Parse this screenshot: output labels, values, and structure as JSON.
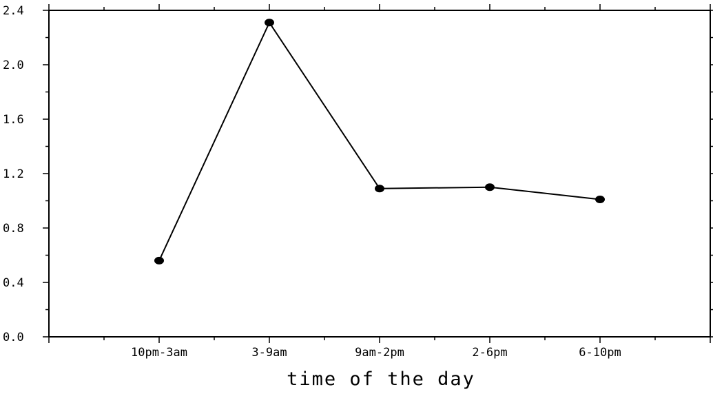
{
  "chart_data": {
    "type": "line",
    "title": "",
    "xlabel": "time of the day",
    "ylabel": "",
    "categories": [
      "10pm-3am",
      "3-9am",
      "9am-2pm",
      "2-6pm",
      "6-10pm"
    ],
    "series": [
      {
        "values": [
          0.56,
          2.31,
          1.09,
          1.1,
          1.01
        ]
      }
    ],
    "ylim": [
      0.0,
      2.4
    ],
    "yticks": [
      "0.0",
      "0.4",
      "0.8",
      "1.2",
      "1.6",
      "2.0",
      "2.4"
    ],
    "grid": false,
    "legend": "none",
    "colors": {
      "line": "#000000",
      "marker": "#000000",
      "axis": "#000000"
    }
  }
}
